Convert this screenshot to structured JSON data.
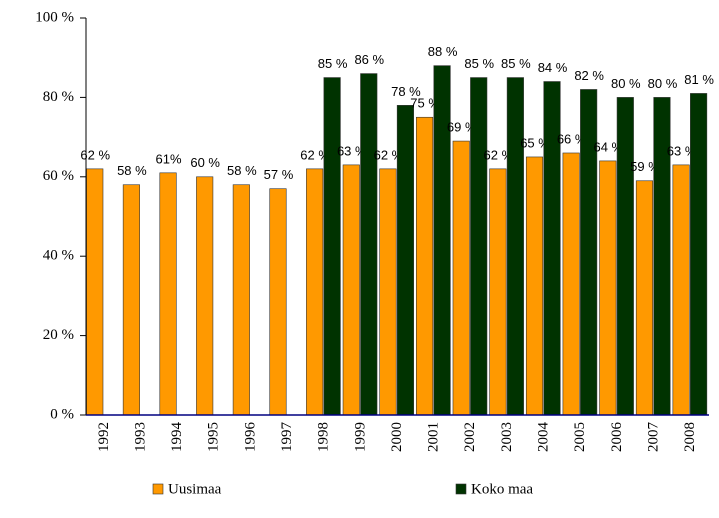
{
  "chart_data": {
    "type": "bar",
    "categories": [
      "1992",
      "1993",
      "1994",
      "1995",
      "1996",
      "1997",
      "1998",
      "1999",
      "2000",
      "2001",
      "2002",
      "2003",
      "2004",
      "2005",
      "2006",
      "2007",
      "2008"
    ],
    "series": [
      {
        "name": "Uusimaa",
        "color": "#ff9900",
        "values": [
          62,
          58,
          61,
          60,
          58,
          57,
          62,
          63,
          62,
          75,
          69,
          62,
          65,
          66,
          64,
          59,
          63
        ],
        "value_labels": [
          "62 %",
          "58 %",
          "61%",
          "60 %",
          "58 %",
          "57 %",
          "62 %",
          "63 %",
          "62 %",
          "75 %",
          "69 %",
          "62 %",
          "65 %",
          "66 %",
          "64 %",
          "59 %",
          "63 %"
        ]
      },
      {
        "name": "Koko maa",
        "color": "#003300",
        "values": [
          null,
          null,
          null,
          null,
          null,
          null,
          85,
          86,
          78,
          88,
          85,
          85,
          84,
          82,
          80,
          80,
          81
        ],
        "value_labels": [
          null,
          null,
          null,
          null,
          null,
          null,
          "85 %",
          "86 %",
          "78 %",
          "88 %",
          "85 %",
          "85 %",
          "84 %",
          "82 %",
          "80 %",
          "80 %",
          "81 %"
        ]
      }
    ],
    "ylim": [
      0,
      100
    ],
    "yticks": [
      {
        "value": 0,
        "label": "0 %"
      },
      {
        "value": 20,
        "label": "20 %"
      },
      {
        "value": 40,
        "label": "40 %"
      },
      {
        "value": 60,
        "label": "60 %"
      },
      {
        "value": 80,
        "label": "80 %"
      },
      {
        "value": 100,
        "label": "100 %"
      }
    ],
    "legend": "bottom"
  }
}
